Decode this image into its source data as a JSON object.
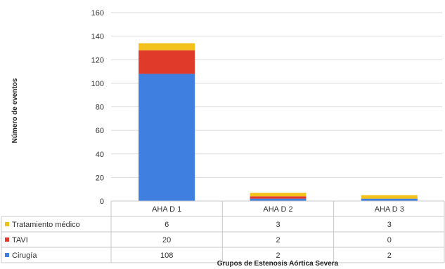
{
  "chart_data": {
    "type": "bar",
    "stacked": true,
    "title": "",
    "xlabel": "Grupos de Estenosis Aórtica Severa",
    "ylabel": "Número de eventos",
    "ylim": [
      0,
      160
    ],
    "yticks": [
      0,
      20,
      40,
      60,
      80,
      100,
      120,
      140,
      160
    ],
    "grid": true,
    "legend": "data-table-left",
    "categories": [
      "AHA D 1",
      "AHA D 2",
      "AHA D 3"
    ],
    "series": [
      {
        "name": "Cirugía",
        "values": [
          108,
          2,
          2
        ],
        "color": "#3f7fe0"
      },
      {
        "name": "TAVI",
        "values": [
          20,
          2,
          0
        ],
        "color": "#e03a2b"
      },
      {
        "name": "Tratamiento médico",
        "values": [
          6,
          3,
          3
        ],
        "color": "#f2c21b"
      }
    ],
    "table_row_order": [
      "Tratamiento médico",
      "TAVI",
      "Cirugía"
    ]
  }
}
